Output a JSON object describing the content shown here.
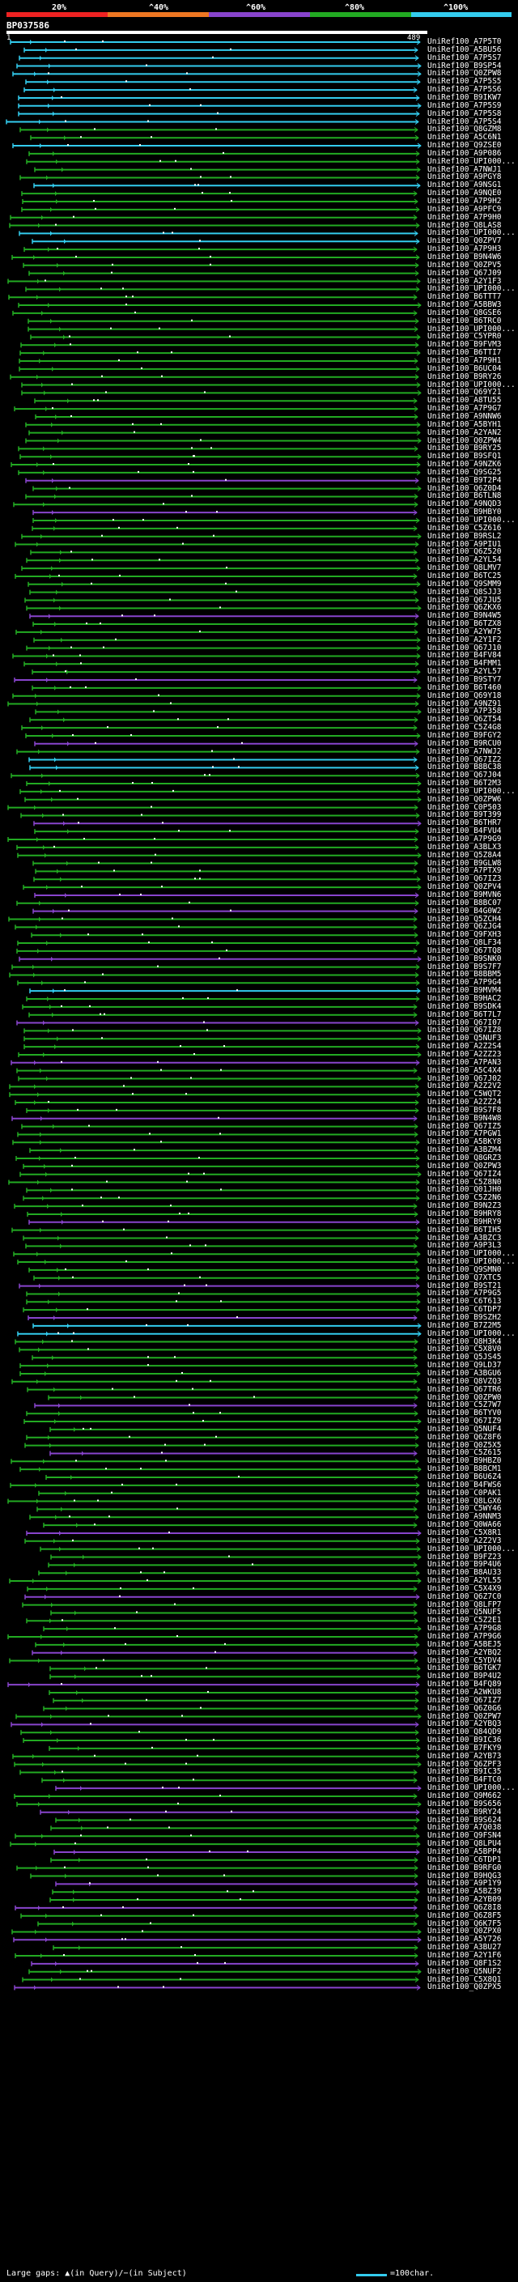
{
  "legend": {
    "labels": [
      "20%",
      "^40%",
      "^60%",
      "^80%",
      "^100%"
    ],
    "colors": [
      "#ee2222",
      "#ee7722",
      "#8844cc",
      "#22aa22",
      "#33ccee"
    ]
  },
  "header": {
    "title": "BP037586",
    "query_start": "1",
    "query_end": "489"
  },
  "hits": [
    {
      "name": "UniRef100_A7P5T0",
      "c": "c"
    },
    {
      "name": "UniRef100_A5BU56",
      "c": "c"
    },
    {
      "name": "UniRef100_A7P5S7",
      "c": "c"
    },
    {
      "name": "UniRef100_B9SP54",
      "c": "c"
    },
    {
      "name": "UniRef100_Q0ZPW8",
      "c": "c"
    },
    {
      "name": "UniRef100_A7P5S5",
      "c": "c"
    },
    {
      "name": "UniRef100_A7P5S6",
      "c": "c"
    },
    {
      "name": "UniRef100_B9IKW7",
      "c": "c"
    },
    {
      "name": "UniRef100_A7P5S9",
      "c": "c"
    },
    {
      "name": "UniRef100_A7P5S8",
      "c": "c"
    },
    {
      "name": "UniRef100_A7P5S4",
      "c": "c"
    },
    {
      "name": "UniRef100_Q8GZM8",
      "c": "g"
    },
    {
      "name": "UniRef100_A5C6N1",
      "c": "g"
    },
    {
      "name": "UniRef100_Q9ZSE0",
      "c": "c"
    },
    {
      "name": "UniRef100_A9P086",
      "c": "g"
    },
    {
      "name": "UniRef100_UPI000...",
      "c": "g"
    },
    {
      "name": "UniRef100_A7NWJ1",
      "c": "g"
    },
    {
      "name": "UniRef100_A9PGY8",
      "c": "g"
    },
    {
      "name": "UniRef100_A9NSG1",
      "c": "c"
    },
    {
      "name": "UniRef100_A9NQE0",
      "c": "g"
    },
    {
      "name": "UniRef100_A7P9H2",
      "c": "g"
    },
    {
      "name": "UniRef100_A9PFC9",
      "c": "g"
    },
    {
      "name": "UniRef100_A7P9H0",
      "c": "g"
    },
    {
      "name": "UniRef100_Q8LAS8",
      "c": "g"
    },
    {
      "name": "UniRef100_UPI000...",
      "c": "c"
    },
    {
      "name": "UniRef100_Q0ZPV7",
      "c": "c"
    },
    {
      "name": "UniRef100_A7P9H3",
      "c": "g"
    },
    {
      "name": "UniRef100_B9N4W6",
      "c": "g"
    },
    {
      "name": "UniRef100_Q0ZPV5",
      "c": "g"
    },
    {
      "name": "UniRef100_Q67J09",
      "c": "g"
    },
    {
      "name": "UniRef100_A2Y1F3",
      "c": "g"
    },
    {
      "name": "UniRef100_UPI000...",
      "c": "g"
    },
    {
      "name": "UniRef100_B6TTT7",
      "c": "g"
    },
    {
      "name": "UniRef100_A5BBW3",
      "c": "g"
    },
    {
      "name": "UniRef100_Q8GSE6",
      "c": "g"
    },
    {
      "name": "UniRef100_B6TRC0",
      "c": "g"
    },
    {
      "name": "UniRef100_UPI000...",
      "c": "g"
    },
    {
      "name": "UniRef100_C5YPR0",
      "c": "g"
    },
    {
      "name": "UniRef100_B9FVM3",
      "c": "g"
    },
    {
      "name": "UniRef100_B6TTI7",
      "c": "g"
    },
    {
      "name": "UniRef100_A7P9H1",
      "c": "g"
    },
    {
      "name": "UniRef100_B6UC04",
      "c": "g"
    },
    {
      "name": "UniRef100_B9RY26",
      "c": "g"
    },
    {
      "name": "UniRef100_UPI000...",
      "c": "g"
    },
    {
      "name": "UniRef100_Q69Y21",
      "c": "g"
    },
    {
      "name": "UniRef100_A8TU55",
      "c": "g"
    },
    {
      "name": "UniRef100_A7P9G7",
      "c": "g"
    },
    {
      "name": "UniRef100_A9NNW6",
      "c": "g"
    },
    {
      "name": "UniRef100_A5BYH1",
      "c": "g"
    },
    {
      "name": "UniRef100_A2YAN2",
      "c": "g"
    },
    {
      "name": "UniRef100_Q0ZPW4",
      "c": "g"
    },
    {
      "name": "UniRef100_B9RY25",
      "c": "g"
    },
    {
      "name": "UniRef100_B9SFQ1",
      "c": "g"
    },
    {
      "name": "UniRef100_A9NZK6",
      "c": "g"
    },
    {
      "name": "UniRef100_Q9SG25",
      "c": "g"
    },
    {
      "name": "UniRef100_B9T2P4",
      "c": "m"
    },
    {
      "name": "UniRef100_Q6Z0D4",
      "c": "g"
    },
    {
      "name": "UniRef100_B6TLN8",
      "c": "g"
    },
    {
      "name": "UniRef100_A9NQD3",
      "c": "g"
    },
    {
      "name": "UniRef100_B9HBY0",
      "c": "m"
    },
    {
      "name": "UniRef100_UPI000...",
      "c": "g"
    },
    {
      "name": "UniRef100_C5Z616",
      "c": "g"
    },
    {
      "name": "UniRef100_B9RSL2",
      "c": "g"
    },
    {
      "name": "UniRef100_A9PIU1",
      "c": "g"
    },
    {
      "name": "UniRef100_Q6Z520",
      "c": "g"
    },
    {
      "name": "UniRef100_A2YL54",
      "c": "g"
    },
    {
      "name": "UniRef100_Q8LMV7",
      "c": "g"
    },
    {
      "name": "UniRef100_B6TC25",
      "c": "g"
    },
    {
      "name": "UniRef100_Q9SMM9",
      "c": "g"
    },
    {
      "name": "UniRef100_Q8SJJ3",
      "c": "g"
    },
    {
      "name": "UniRef100_Q67JU5",
      "c": "g"
    },
    {
      "name": "UniRef100_Q6ZKX6",
      "c": "g"
    },
    {
      "name": "UniRef100_B9N4W5",
      "c": "m"
    },
    {
      "name": "UniRef100_B6TZX8",
      "c": "g"
    },
    {
      "name": "UniRef100_A2YW75",
      "c": "g"
    },
    {
      "name": "UniRef100_A2Y1F2",
      "c": "g"
    },
    {
      "name": "UniRef100_Q67J10",
      "c": "g"
    },
    {
      "name": "UniRef100_B4FV84",
      "c": "g"
    },
    {
      "name": "UniRef100_B4FMM1",
      "c": "g"
    },
    {
      "name": "UniRef100_A2YL57",
      "c": "g"
    },
    {
      "name": "UniRef100_B9STY7",
      "c": "m"
    },
    {
      "name": "UniRef100_B6T460",
      "c": "g"
    },
    {
      "name": "UniRef100_Q69Y18",
      "c": "g"
    },
    {
      "name": "UniRef100_A9NZ91",
      "c": "g"
    },
    {
      "name": "UniRef100_A7P358",
      "c": "g"
    },
    {
      "name": "UniRef100_Q6ZT54",
      "c": "g"
    },
    {
      "name": "UniRef100_C5Z4G8",
      "c": "g"
    },
    {
      "name": "UniRef100_B9FGY2",
      "c": "g"
    },
    {
      "name": "UniRef100_B9RCU0",
      "c": "m"
    },
    {
      "name": "UniRef100_A7NWJ2",
      "c": "g"
    },
    {
      "name": "UniRef100_Q67IZ2",
      "c": "c"
    },
    {
      "name": "UniRef100_B8BC38",
      "c": "c"
    },
    {
      "name": "UniRef100_Q67J04",
      "c": "g"
    },
    {
      "name": "UniRef100_B6T2M3",
      "c": "g"
    },
    {
      "name": "UniRef100_UPI000...",
      "c": "g"
    },
    {
      "name": "UniRef100_Q0ZPW6",
      "c": "g"
    },
    {
      "name": "UniRef100_C0P503",
      "c": "g"
    },
    {
      "name": "UniRef100_B9T399",
      "c": "g"
    },
    {
      "name": "UniRef100_B6THR7",
      "c": "m"
    },
    {
      "name": "UniRef100_B4FVU4",
      "c": "g"
    },
    {
      "name": "UniRef100_A7P9G9",
      "c": "g"
    },
    {
      "name": "UniRef100_A3BLX3",
      "c": "g"
    },
    {
      "name": "UniRef100_Q5Z8A4",
      "c": "g"
    },
    {
      "name": "UniRef100_B9GLW8",
      "c": "g"
    },
    {
      "name": "UniRef100_A7PTX9",
      "c": "g"
    },
    {
      "name": "UniRef100_Q67IZ3",
      "c": "g"
    },
    {
      "name": "UniRef100_Q0ZPV4",
      "c": "g"
    },
    {
      "name": "UniRef100_B9MVN6",
      "c": "m"
    },
    {
      "name": "UniRef100_B8BC07",
      "c": "g"
    },
    {
      "name": "UniRef100_B4G0W2",
      "c": "m"
    },
    {
      "name": "UniRef100_Q5ZCH4",
      "c": "g"
    },
    {
      "name": "UniRef100_Q6ZJG4",
      "c": "g"
    },
    {
      "name": "UniRef100_Q9FXH3",
      "c": "g"
    },
    {
      "name": "UniRef100_Q8LF34",
      "c": "g"
    },
    {
      "name": "UniRef100_Q67TQ8",
      "c": "g"
    },
    {
      "name": "UniRef100_B9SNK0",
      "c": "m"
    },
    {
      "name": "UniRef100_B9S7F7",
      "c": "g"
    },
    {
      "name": "UniRef100_B8BBM5",
      "c": "g"
    },
    {
      "name": "UniRef100_A7P9G4",
      "c": "g"
    },
    {
      "name": "UniRef100_B9MVM4",
      "c": "c"
    },
    {
      "name": "UniRef100_B9HAC2",
      "c": "g"
    },
    {
      "name": "UniRef100_B9SDK4",
      "c": "g"
    },
    {
      "name": "UniRef100_B6T7L7",
      "c": "g"
    },
    {
      "name": "UniRef100_Q67I07",
      "c": "m"
    },
    {
      "name": "UniRef100_Q67IZ8",
      "c": "g"
    },
    {
      "name": "UniRef100_Q5NUF3",
      "c": "g"
    },
    {
      "name": "UniRef100_A2Z2S4",
      "c": "g"
    },
    {
      "name": "UniRef100_A2ZZ23",
      "c": "g"
    },
    {
      "name": "UniRef100_A7PAN3",
      "c": "m"
    },
    {
      "name": "UniRef100_A5C4X4",
      "c": "g"
    },
    {
      "name": "UniRef100_Q67J02",
      "c": "g"
    },
    {
      "name": "UniRef100_A2Z2V2",
      "c": "g"
    },
    {
      "name": "UniRef100_C5WQT2",
      "c": "g"
    },
    {
      "name": "UniRef100_A2ZZ24",
      "c": "g"
    },
    {
      "name": "UniRef100_B9S7F8",
      "c": "g"
    },
    {
      "name": "UniRef100_B9N4W8",
      "c": "m"
    },
    {
      "name": "UniRef100_Q67IZ5",
      "c": "g"
    },
    {
      "name": "UniRef100_A7PGW1",
      "c": "g"
    },
    {
      "name": "UniRef100_A5BKY8",
      "c": "g"
    },
    {
      "name": "UniRef100_A3BZM4",
      "c": "g"
    },
    {
      "name": "UniRef100_Q8GRZ3",
      "c": "g"
    },
    {
      "name": "UniRef100_Q0ZPW3",
      "c": "g"
    },
    {
      "name": "UniRef100_Q67IZ4",
      "c": "g"
    },
    {
      "name": "UniRef100_C5Z8N0",
      "c": "g"
    },
    {
      "name": "UniRef100_Q01JH0",
      "c": "g"
    },
    {
      "name": "UniRef100_C5Z2N6",
      "c": "g"
    },
    {
      "name": "UniRef100_B9N2Z3",
      "c": "g"
    },
    {
      "name": "UniRef100_B9HRY8",
      "c": "g"
    },
    {
      "name": "UniRef100_B9HRY9",
      "c": "m"
    },
    {
      "name": "UniRef100_B6TIH5",
      "c": "g"
    },
    {
      "name": "UniRef100_A3BZC3",
      "c": "g"
    },
    {
      "name": "UniRef100_A9P3L3",
      "c": "g"
    },
    {
      "name": "UniRef100_UPI000...",
      "c": "g"
    },
    {
      "name": "UniRef100_UPI000...",
      "c": "g"
    },
    {
      "name": "UniRef100_Q9SMN0",
      "c": "g"
    },
    {
      "name": "UniRef100_Q7XTC5",
      "c": "g"
    },
    {
      "name": "UniRef100_B9ST21",
      "c": "m"
    },
    {
      "name": "UniRef100_A7P9G5",
      "c": "g"
    },
    {
      "name": "UniRef100_C6T613",
      "c": "g"
    },
    {
      "name": "UniRef100_C6TDP7",
      "c": "g"
    },
    {
      "name": "UniRef100_B9SZH2",
      "c": "m"
    },
    {
      "name": "UniRef100_B7Z2M5",
      "c": "c"
    },
    {
      "name": "UniRef100_UPI000...",
      "c": "c"
    },
    {
      "name": "UniRef100_Q8H3K4",
      "c": "g"
    },
    {
      "name": "UniRef100_C5X8V0",
      "c": "g"
    },
    {
      "name": "UniRef100_Q5JS45",
      "c": "g"
    },
    {
      "name": "UniRef100_Q9LD37",
      "c": "g"
    },
    {
      "name": "UniRef100_A3BGU6",
      "c": "g"
    },
    {
      "name": "UniRef100_Q8VZQ3",
      "c": "g"
    },
    {
      "name": "UniRef100_Q67TR6",
      "c": "g"
    },
    {
      "name": "UniRef100_Q0ZPW0",
      "c": "g"
    },
    {
      "name": "UniRef100_C5Z7W7",
      "c": "m"
    },
    {
      "name": "UniRef100_B6TYV0",
      "c": "g"
    },
    {
      "name": "UniRef100_Q67IZ9",
      "c": "g"
    },
    {
      "name": "UniRef100_Q5NUF4",
      "c": "g"
    },
    {
      "name": "UniRef100_Q6Z8F6",
      "c": "g"
    },
    {
      "name": "UniRef100_Q0Z5X5",
      "c": "g"
    },
    {
      "name": "UniRef100_C5Z615",
      "c": "m"
    },
    {
      "name": "UniRef100_B9HBZ0",
      "c": "g"
    },
    {
      "name": "UniRef100_B8BCM1",
      "c": "g"
    },
    {
      "name": "UniRef100_B6U6Z4",
      "c": "g"
    },
    {
      "name": "UniRef100_B4FWS6",
      "c": "g"
    },
    {
      "name": "UniRef100_C0PAK1",
      "c": "g"
    },
    {
      "name": "UniRef100_Q8LGX6",
      "c": "g"
    },
    {
      "name": "UniRef100_C5WY46",
      "c": "g"
    },
    {
      "name": "UniRef100_A9NNM3",
      "c": "g"
    },
    {
      "name": "UniRef100_Q0WA66",
      "c": "g"
    },
    {
      "name": "UniRef100_C5X8R1",
      "c": "m"
    },
    {
      "name": "UniRef100_A2Z2V3",
      "c": "g"
    },
    {
      "name": "UniRef100_UPI000...",
      "c": "g"
    },
    {
      "name": "UniRef100_B9FZ23",
      "c": "g"
    },
    {
      "name": "UniRef100_B9P4U6",
      "c": "g"
    },
    {
      "name": "UniRef100_B8AU33",
      "c": "g"
    },
    {
      "name": "UniRef100_A2YL55",
      "c": "g"
    },
    {
      "name": "UniRef100_C5X4X9",
      "c": "g"
    },
    {
      "name": "UniRef100_Q6Z7C0",
      "c": "m"
    },
    {
      "name": "UniRef100_Q8LFP7",
      "c": "g"
    },
    {
      "name": "UniRef100_Q5NUF5",
      "c": "g"
    },
    {
      "name": "UniRef100_C5Z2E1",
      "c": "g"
    },
    {
      "name": "UniRef100_A7P9G8",
      "c": "g"
    },
    {
      "name": "UniRef100_A7P9G6",
      "c": "g"
    },
    {
      "name": "UniRef100_A5BEJ5",
      "c": "g"
    },
    {
      "name": "UniRef100_A2YBQ2",
      "c": "m"
    },
    {
      "name": "UniRef100_C5YDV4",
      "c": "g"
    },
    {
      "name": "UniRef100_B6TGK7",
      "c": "g"
    },
    {
      "name": "UniRef100_B9P4U2",
      "c": "g"
    },
    {
      "name": "UniRef100_B4FQ89",
      "c": "m"
    },
    {
      "name": "UniRef100_A2WKU8",
      "c": "g"
    },
    {
      "name": "UniRef100_Q67IZ7",
      "c": "g"
    },
    {
      "name": "UniRef100_Q6Z0G6",
      "c": "g"
    },
    {
      "name": "UniRef100_Q0ZPW7",
      "c": "g"
    },
    {
      "name": "UniRef100_A2YBQ3",
      "c": "m"
    },
    {
      "name": "UniRef100_Q84QD9",
      "c": "g"
    },
    {
      "name": "UniRef100_B9IC36",
      "c": "g"
    },
    {
      "name": "UniRef100_B7FKY9",
      "c": "g"
    },
    {
      "name": "UniRef100_A2YB73",
      "c": "g"
    },
    {
      "name": "UniRef100_Q6ZPF3",
      "c": "g"
    },
    {
      "name": "UniRef100_B9IC35",
      "c": "g"
    },
    {
      "name": "UniRef100_B4FTC0",
      "c": "g"
    },
    {
      "name": "UniRef100_UPI000...",
      "c": "m"
    },
    {
      "name": "UniRef100_Q9M662",
      "c": "g"
    },
    {
      "name": "UniRef100_B9S656",
      "c": "g"
    },
    {
      "name": "UniRef100_B9RY24",
      "c": "m"
    },
    {
      "name": "UniRef100_B9S624",
      "c": "g"
    },
    {
      "name": "UniRef100_A7Q038",
      "c": "g"
    },
    {
      "name": "UniRef100_Q9FSN4",
      "c": "g"
    },
    {
      "name": "UniRef100_Q8LPU4",
      "c": "g"
    },
    {
      "name": "UniRef100_A5BPP4",
      "c": "m"
    },
    {
      "name": "UniRef100_C6TDP1",
      "c": "g"
    },
    {
      "name": "UniRef100_B9RFG0",
      "c": "g"
    },
    {
      "name": "UniRef100_B9HQG3",
      "c": "g"
    },
    {
      "name": "UniRef100_A9P1Y9",
      "c": "m"
    },
    {
      "name": "UniRef100_A5BZ39",
      "c": "g"
    },
    {
      "name": "UniRef100_A2YB09",
      "c": "g"
    },
    {
      "name": "UniRef100_Q6Z8I8",
      "c": "m"
    },
    {
      "name": "UniRef100_Q6Z8F5",
      "c": "g"
    },
    {
      "name": "UniRef100_Q6K7F5",
      "c": "g"
    },
    {
      "name": "UniRef100_Q0ZPX0",
      "c": "g"
    },
    {
      "name": "UniRef100_A5Y726",
      "c": "m"
    },
    {
      "name": "UniRef100_A3BU27",
      "c": "g"
    },
    {
      "name": "UniRef100_A2Y1F6",
      "c": "g"
    },
    {
      "name": "UniRef100_Q8F1S2",
      "c": "m"
    },
    {
      "name": "UniRef100_Q5NUF2",
      "c": "g"
    },
    {
      "name": "UniRef100_C5X8Q1",
      "c": "g"
    },
    {
      "name": "UniRef100_Q0ZPX5",
      "c": "m"
    }
  ],
  "footer": {
    "text": "Large gaps: ▲(in Query)/−(in Subject)",
    "scale": "=100char."
  }
}
